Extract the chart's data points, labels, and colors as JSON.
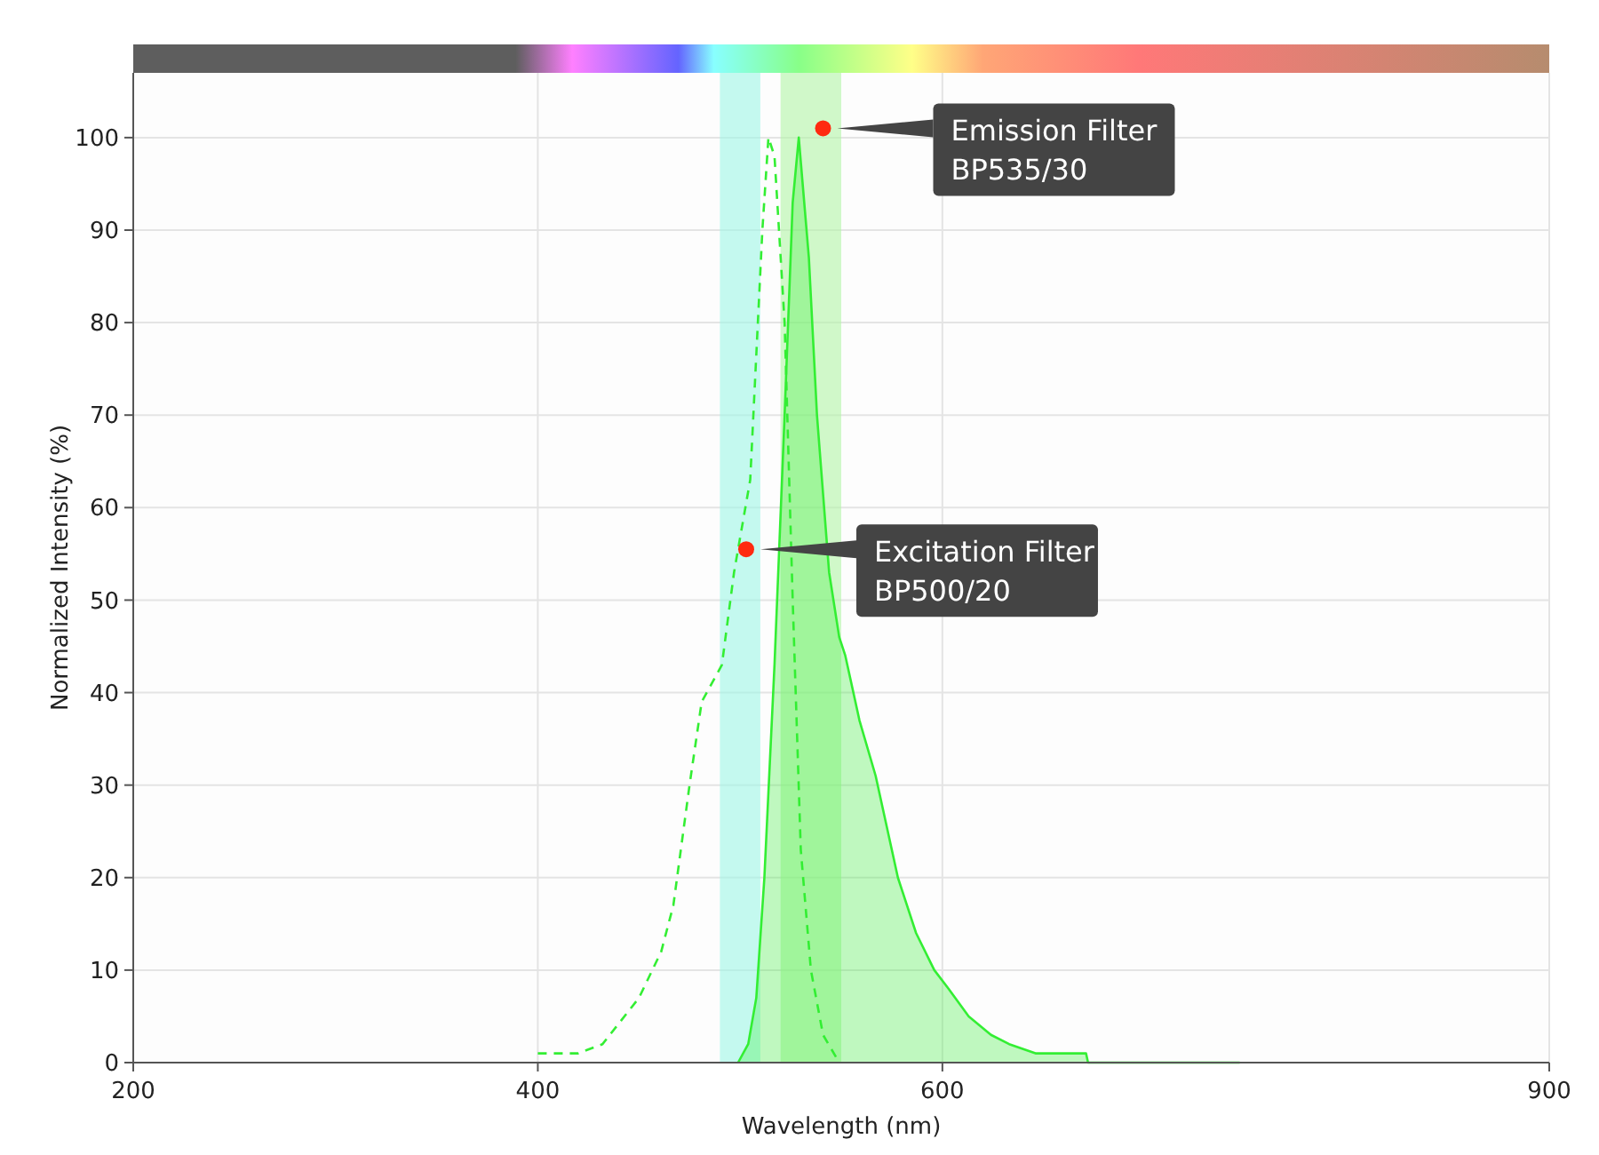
{
  "chart_data": {
    "type": "line",
    "xlabel": "Wavelength (nm)",
    "ylabel": "Normalized Intensity (%)",
    "xlim": [
      200,
      900
    ],
    "xticks": [
      200,
      400,
      600,
      900
    ],
    "ylim": [
      0,
      107
    ],
    "yticks": [
      0,
      10,
      20,
      30,
      40,
      50,
      60,
      70,
      80,
      90,
      100
    ],
    "grid": true,
    "series": [
      {
        "color": "#33ee33",
        "line_style": "dashed",
        "x": [
          400,
          420,
          432,
          450,
          461,
          467,
          475,
          481,
          491,
          497,
          505,
          511,
          514,
          517,
          522,
          526,
          530,
          535,
          541,
          549
        ],
        "values": [
          1,
          1,
          2,
          7,
          12,
          17,
          30,
          39,
          43,
          53,
          63,
          90,
          100,
          98,
          80,
          50,
          23,
          10,
          3,
          0
        ]
      },
      {
        "type": "area",
        "color": "#33ee33",
        "line_style": "solid",
        "x": [
          499,
          504,
          508,
          512,
          517,
          522,
          526,
          529,
          534,
          538,
          544,
          549,
          552,
          559,
          567,
          578,
          587,
          596,
          603,
          613,
          624,
          633,
          646,
          671,
          672,
          747
        ],
        "values": [
          0,
          2,
          7,
          20,
          43,
          70,
          93,
          100,
          87,
          70,
          53,
          46,
          44,
          37,
          31,
          20,
          14,
          10,
          8,
          5,
          3,
          2,
          1,
          1,
          0,
          0
        ]
      }
    ],
    "bands": [
      {
        "axis": "x",
        "from": 490,
        "to": 510,
        "color": "#9ff7e6"
      },
      {
        "axis": "x",
        "from": 520,
        "to": 550,
        "color": "#b3f5a6"
      }
    ],
    "annotations": [
      {
        "text": "Emission Filter\nBP535/30",
        "x": 541,
        "y": 101
      },
      {
        "text": "Excitation Filter\nBP500/20",
        "x": 503,
        "y": 55.5
      }
    ]
  }
}
